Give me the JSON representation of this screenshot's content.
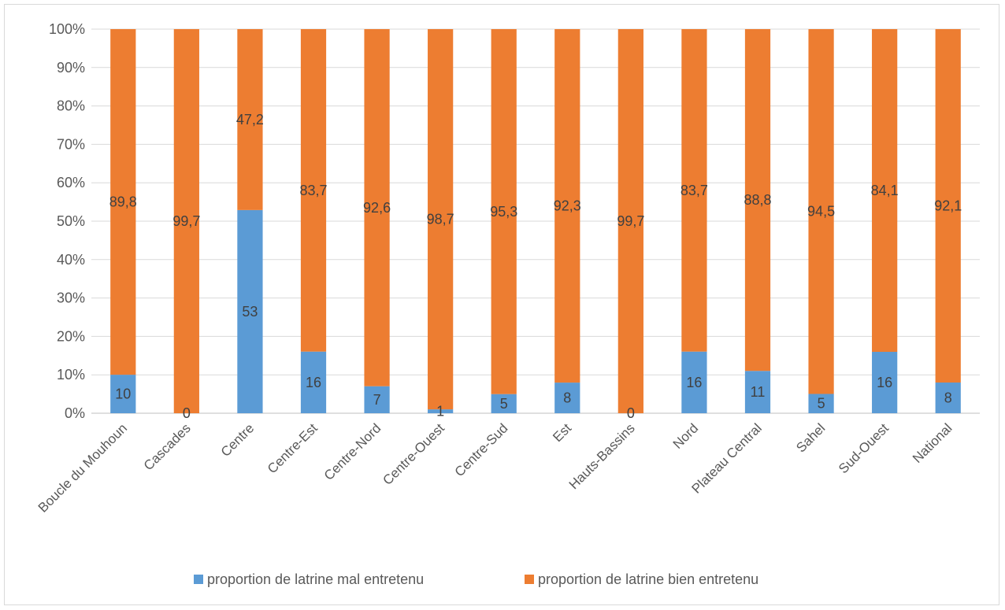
{
  "chart_data": {
    "type": "bar",
    "stacked": true,
    "percent_stacked": true,
    "title": "",
    "xlabel": "",
    "ylabel": "",
    "ylim": [
      0,
      100
    ],
    "yticks": [
      "0%",
      "10%",
      "20%",
      "30%",
      "40%",
      "50%",
      "60%",
      "70%",
      "80%",
      "90%",
      "100%"
    ],
    "grid": true,
    "legend_position": "bottom",
    "categories": [
      "Boucle du Mouhoun",
      "Cascades",
      "Centre",
      "Centre-Est",
      "Centre-Nord",
      "Centre-Ouest",
      "Centre-Sud",
      "Est",
      "Hauts-Bassins",
      "Nord",
      "Plateau Central",
      "Sahel",
      "Sud-Ouest",
      "National"
    ],
    "series": [
      {
        "name": "proportion de latrine mal entretenu",
        "color": "#5b9bd5",
        "values": [
          10,
          0,
          53,
          16,
          7,
          1,
          5,
          8,
          0,
          16,
          11,
          5,
          16,
          8
        ],
        "labels": [
          "10",
          "0",
          "53",
          "16",
          "7",
          "1",
          "5",
          "8",
          "0",
          "16",
          "11",
          "5",
          "16",
          "8"
        ]
      },
      {
        "name": "proportion de latrine bien entretenu",
        "color": "#ed7d31",
        "values": [
          89.8,
          99.7,
          47.2,
          83.7,
          92.6,
          98.7,
          95.3,
          92.3,
          99.7,
          83.7,
          88.8,
          94.5,
          84.1,
          92.1
        ],
        "labels": [
          "89,8",
          "99,7",
          "47,2",
          "83,7",
          "92,6",
          "98,7",
          "95,3",
          "92,3",
          "99,7",
          "83,7",
          "88,8",
          "94,5",
          "84,1",
          "92,1"
        ]
      }
    ]
  }
}
